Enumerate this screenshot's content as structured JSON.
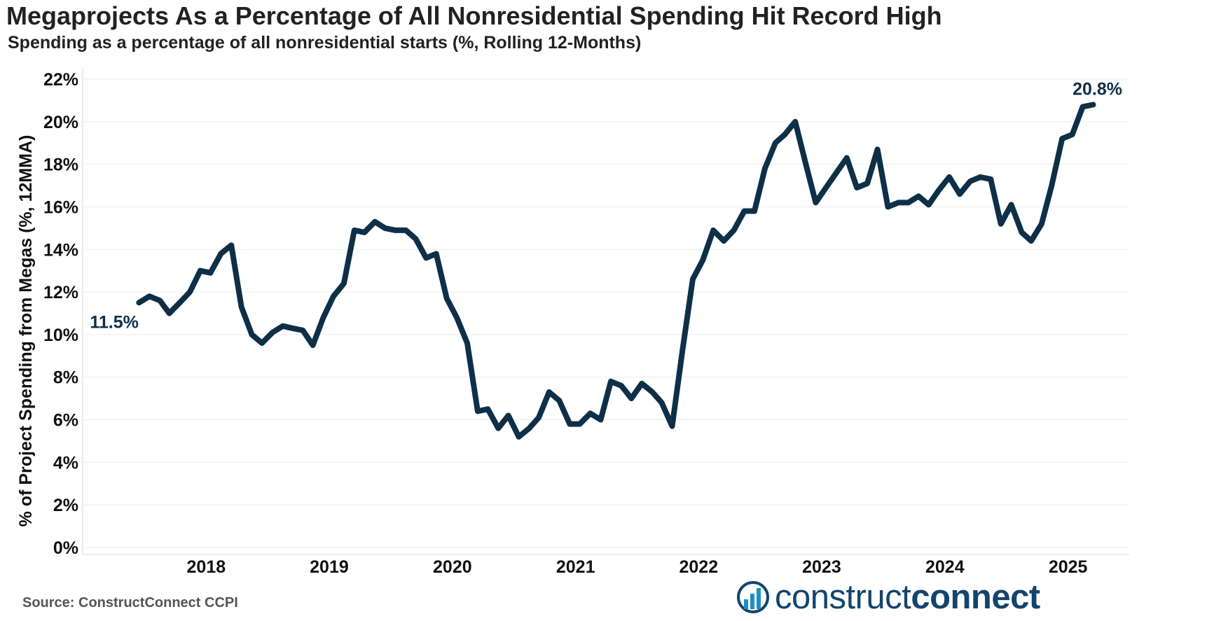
{
  "header": {
    "title": "Megaprojects As a Percentage of All Nonresidential Spending Hit Record High",
    "subtitle": "Spending as a percentage of all nonresidential starts (%, Rolling 12-Months)"
  },
  "footer": {
    "source": "Source: ConstructConnect CCPI",
    "brand_light": "construct",
    "brand_bold": "connect",
    "brand_icon": "bar-chart-logo-icon"
  },
  "colors": {
    "line": "#0d3048",
    "grid": "#eeeeee",
    "axis": "#d9d9d9",
    "label": "#0d3048",
    "brand": "#14446b"
  },
  "chart_data": {
    "type": "line",
    "title": "Megaprojects As a Percentage of All Nonresidential Spending Hit Record High",
    "subtitle": "Spending as a percentage of all nonresidential starts (%, Rolling 12-Months)",
    "ylabel": "% of Project Spending from Megas (%, 12MMA)",
    "xlabel": "",
    "ylim": [
      0,
      22
    ],
    "yticks": [
      0,
      2,
      4,
      6,
      8,
      10,
      12,
      14,
      16,
      18,
      20,
      22
    ],
    "ytick_labels": [
      "0%",
      "2%",
      "4%",
      "6%",
      "8%",
      "10%",
      "12%",
      "14%",
      "16%",
      "18%",
      "20%",
      "22%"
    ],
    "xlim": [
      "2017-07-01",
      "2025-12-31"
    ],
    "xticks": [
      "2018-01-01",
      "2019-01-01",
      "2020-01-01",
      "2021-01-01",
      "2022-01-01",
      "2023-01-01",
      "2024-01-01",
      "2025-01-01"
    ],
    "xtick_labels": [
      "2018",
      "2019",
      "2020",
      "2021",
      "2022",
      "2023",
      "2024",
      "2025"
    ],
    "grid": true,
    "x": [
      "2017-12",
      "2018-01",
      "2018-02",
      "2018-03",
      "2018-04",
      "2018-05",
      "2018-06",
      "2018-07",
      "2018-08",
      "2018-09",
      "2018-10",
      "2018-11",
      "2018-12",
      "2019-01",
      "2019-02",
      "2019-03",
      "2019-04",
      "2019-05",
      "2019-06",
      "2019-07",
      "2019-08",
      "2019-09",
      "2019-10",
      "2019-11",
      "2019-12",
      "2020-01",
      "2020-02",
      "2020-03",
      "2020-04",
      "2020-05",
      "2020-06",
      "2020-07",
      "2020-08",
      "2020-09",
      "2020-10",
      "2020-11",
      "2020-12",
      "2021-01",
      "2021-02",
      "2021-03",
      "2021-04",
      "2021-05",
      "2021-06",
      "2021-07",
      "2021-08",
      "2021-09",
      "2021-10",
      "2021-11",
      "2021-12",
      "2022-01",
      "2022-02",
      "2022-03",
      "2022-04",
      "2022-05",
      "2022-06",
      "2022-07",
      "2022-08",
      "2022-09",
      "2022-10",
      "2022-11",
      "2022-12",
      "2023-01",
      "2023-02",
      "2023-03",
      "2023-04",
      "2023-05",
      "2023-06",
      "2023-07",
      "2023-08",
      "2023-09",
      "2023-10",
      "2023-11",
      "2023-12",
      "2024-01",
      "2024-02",
      "2024-03",
      "2024-04",
      "2024-05",
      "2024-06",
      "2024-07",
      "2024-08",
      "2024-09",
      "2024-10",
      "2024-11",
      "2024-12",
      "2025-01",
      "2025-02",
      "2025-03",
      "2025-04",
      "2025-05",
      "2025-06",
      "2025-07",
      "2025-08",
      "2025-09"
    ],
    "series": [
      {
        "name": "",
        "values": [
          11.5,
          11.8,
          11.6,
          11.0,
          11.5,
          12.0,
          13.0,
          12.9,
          13.8,
          14.2,
          11.3,
          10.0,
          9.6,
          10.1,
          10.4,
          10.3,
          10.2,
          9.5,
          10.8,
          11.8,
          12.4,
          14.9,
          14.8,
          15.3,
          15.0,
          14.9,
          14.9,
          14.5,
          13.6,
          13.8,
          11.7,
          10.8,
          9.6,
          6.4,
          6.5,
          5.6,
          6.2,
          5.2,
          5.6,
          6.1,
          7.3,
          6.9,
          5.8,
          5.8,
          6.3,
          6.0,
          7.8,
          7.6,
          7.0,
          7.7,
          7.3,
          6.8,
          5.7,
          9.2,
          12.6,
          13.5,
          14.9,
          14.4,
          14.9,
          15.8,
          15.8,
          17.8,
          19.0,
          19.4,
          20.0,
          18.1,
          16.2,
          16.9,
          17.6,
          18.3,
          16.9,
          17.1,
          18.7,
          16.0,
          16.2,
          16.2,
          16.5,
          16.1,
          16.8,
          17.4,
          16.6,
          17.2,
          17.4,
          17.3,
          15.2,
          16.1,
          14.8,
          14.4,
          15.2,
          17.0,
          19.2,
          19.4,
          20.7,
          20.8
        ]
      }
    ],
    "annotations": [
      {
        "text": "11.5%",
        "x": "2017-12",
        "y": 11.5
      },
      {
        "text": "20.8%",
        "x": "2025-09",
        "y": 20.8
      }
    ]
  }
}
